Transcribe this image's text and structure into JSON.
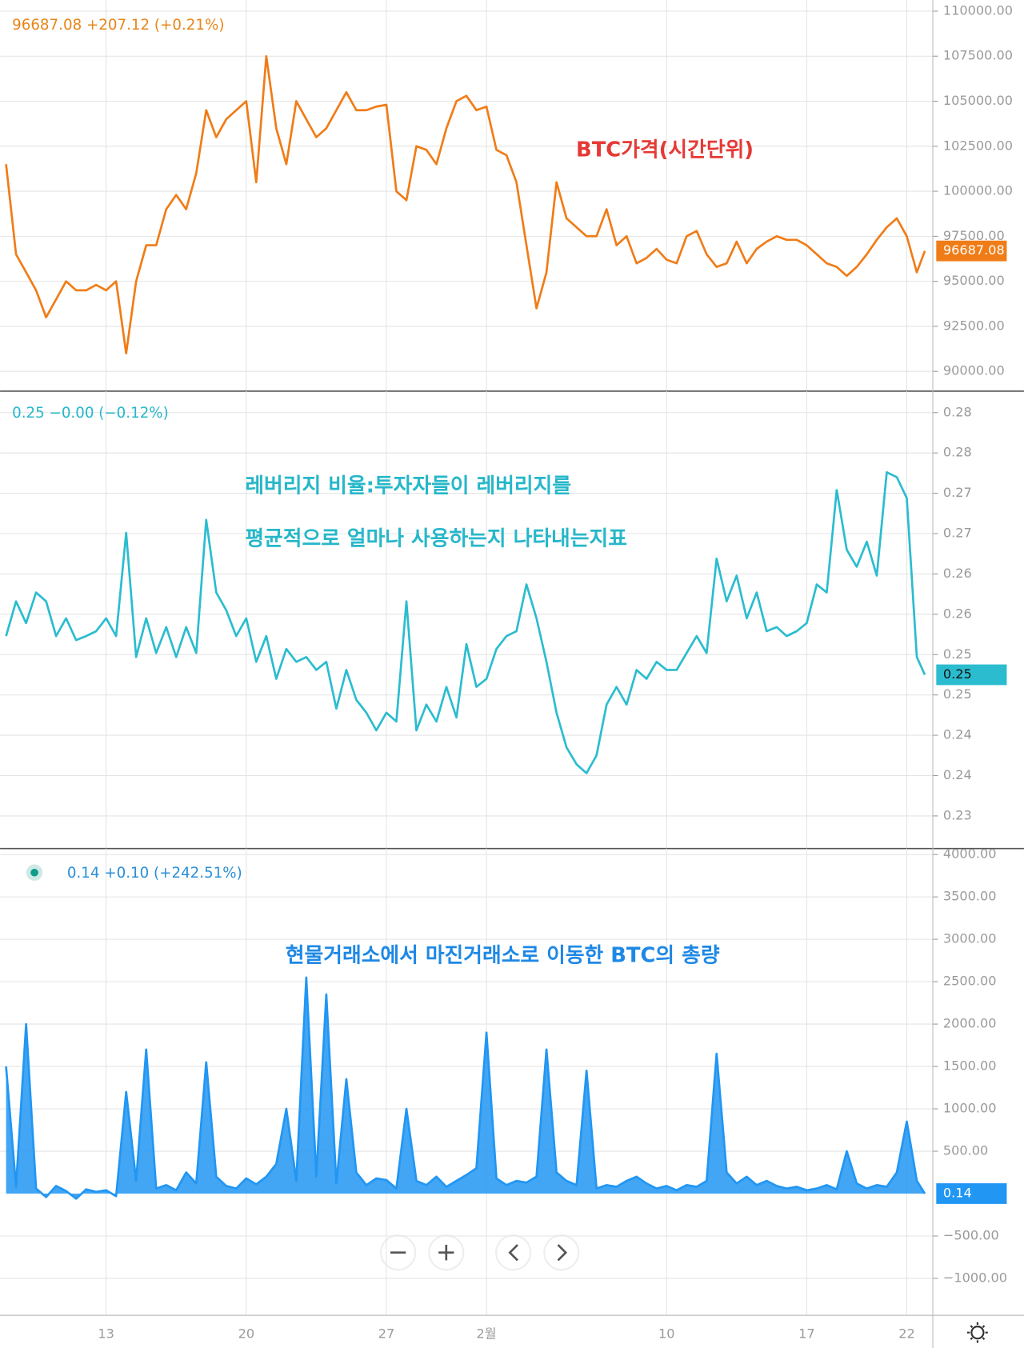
{
  "chart_data": [
    {
      "type": "line",
      "header": "96687.08  +207.12 (+0.21%)",
      "annotation": "BTC가격(시간단위)",
      "last_label": "96687.08",
      "series": [
        {
          "color": "#f07c17",
          "x": [
            8,
            8.5,
            9,
            9.5,
            10,
            10.5,
            11,
            11.5,
            12,
            12.5,
            13,
            13.5,
            14,
            14.5,
            15,
            15.5,
            16,
            16.5,
            17,
            17.5,
            18,
            18.5,
            19,
            19.5,
            20,
            20.5,
            21,
            21.5,
            22,
            22.5,
            23,
            23.5,
            24,
            24.5,
            25,
            25.5,
            26,
            26.5,
            27,
            27.5,
            28,
            28.5,
            29,
            29.5,
            30,
            30.5,
            31,
            31.5,
            32,
            32.5,
            33,
            33.5,
            34,
            34.5,
            35,
            35.5,
            36,
            36.5,
            37,
            37.5,
            38,
            38.5,
            39,
            39.5,
            40,
            40.5,
            41,
            41.5,
            42,
            42.5,
            43,
            43.5,
            44,
            44.5,
            45,
            45.5,
            46,
            46.5,
            47,
            47.5,
            48,
            48.5,
            49,
            49.5,
            50,
            50.5,
            51,
            51.5,
            52,
            52.5,
            53,
            53.5,
            53.9
          ],
          "values": [
            101500,
            96500,
            95500,
            94500,
            93000,
            94000,
            95000,
            94500,
            94500,
            94800,
            94500,
            95000,
            91000,
            95000,
            97000,
            97000,
            99000,
            99800,
            99000,
            101000,
            104500,
            103000,
            104000,
            104500,
            105000,
            100500,
            107500,
            103500,
            101500,
            105000,
            104000,
            103000,
            103500,
            104500,
            105500,
            104500,
            104500,
            104700,
            104800,
            100000,
            99500,
            102500,
            102300,
            101500,
            103500,
            105000,
            105300,
            104500,
            104700,
            102300,
            102000,
            100500,
            97000,
            93500,
            95500,
            100500,
            98500,
            98000,
            97500,
            97500,
            99000,
            97000,
            97500,
            96000,
            96300,
            96800,
            96200,
            96000,
            97500,
            97800,
            96500,
            95800,
            96000,
            97200,
            96000,
            96800,
            97200,
            97500,
            97300,
            97300,
            97000,
            96500,
            96000,
            95800,
            95300,
            95800,
            96500,
            97300,
            98000,
            98500,
            97500,
            95500,
            96687.08
          ]
        }
      ],
      "xlim": [
        7.7,
        54.3
      ],
      "ylim": [
        88900,
        110620
      ],
      "yticks": [
        {
          "value": 90000,
          "label": "90000.00"
        },
        {
          "value": 92500,
          "label": "92500.00"
        },
        {
          "value": 95000,
          "label": "95000.00"
        },
        {
          "value": 97500,
          "label": "97500.00"
        },
        {
          "value": 100000,
          "label": "100000.00"
        },
        {
          "value": 102500,
          "label": "102500.00"
        },
        {
          "value": 105000,
          "label": "105000.00"
        },
        {
          "value": 107500,
          "label": "107500.00"
        },
        {
          "value": 110000,
          "label": "110000.00"
        }
      ],
      "grid": true
    },
    {
      "type": "line",
      "header": "0.25  −0.00 (−0.12%)",
      "annotation": "레버리지 비율:투자자들이 레버리지를",
      "annotation2": "평균적으로 얼마나 사용하는지 나타내는지표",
      "last_label": "0.25",
      "series": [
        {
          "color": "#2bbccf",
          "x": [
            8,
            8.5,
            9,
            9.5,
            10,
            10.5,
            11,
            11.5,
            12,
            12.5,
            13,
            13.5,
            14,
            14.5,
            15,
            15.5,
            16,
            16.5,
            17,
            17.5,
            18,
            18.5,
            19,
            19.5,
            20,
            20.5,
            21,
            21.5,
            22,
            22.5,
            23,
            23.5,
            24,
            24.5,
            25,
            25.5,
            26,
            26.5,
            27,
            27.5,
            28,
            28.5,
            29,
            29.5,
            30,
            30.5,
            31,
            31.5,
            32,
            32.5,
            33,
            33.5,
            34,
            34.5,
            35,
            35.5,
            36,
            36.5,
            37,
            37.5,
            38,
            38.5,
            39,
            39.5,
            40,
            40.5,
            41,
            41.5,
            42,
            42.5,
            43,
            43.5,
            44,
            44.5,
            45,
            45.5,
            46,
            46.5,
            47,
            47.5,
            48,
            48.5,
            49,
            49.5,
            50,
            50.5,
            51,
            51.5,
            52,
            52.5,
            53,
            53.5,
            53.9
          ],
          "values": [
            0.2548,
            0.2591,
            0.2564,
            0.2602,
            0.2591,
            0.2548,
            0.257,
            0.2543,
            0.2548,
            0.2554,
            0.257,
            0.2548,
            0.2676,
            0.2522,
            0.257,
            0.2527,
            0.2559,
            0.2522,
            0.2559,
            0.2527,
            0.2692,
            0.2602,
            0.258,
            0.2548,
            0.257,
            0.2516,
            0.2548,
            0.2495,
            0.2532,
            0.2516,
            0.2522,
            0.2506,
            0.2516,
            0.2458,
            0.2506,
            0.2469,
            0.2453,
            0.2431,
            0.2453,
            0.2442,
            0.2591,
            0.2431,
            0.2463,
            0.2442,
            0.2485,
            0.2447,
            0.2538,
            0.2485,
            0.2495,
            0.2532,
            0.2548,
            0.2554,
            0.2612,
            0.257,
            0.2516,
            0.2453,
            0.241,
            0.2389,
            0.2378,
            0.24,
            0.2463,
            0.2485,
            0.2463,
            0.2506,
            0.2495,
            0.2516,
            0.2506,
            0.2506,
            0.2527,
            0.2548,
            0.2527,
            0.2644,
            0.2591,
            0.2623,
            0.257,
            0.2602,
            0.2554,
            0.2559,
            0.2548,
            0.2554,
            0.2564,
            0.2612,
            0.2602,
            0.2729,
            0.2655,
            0.2634,
            0.2665,
            0.2623,
            0.2751,
            0.2745,
            0.2719,
            0.2522,
            0.25
          ]
        }
      ],
      "xlim": [
        7.7,
        54.3
      ],
      "ylim": [
        0.22846,
        0.28516
      ],
      "yticks": [
        {
          "value": 0.2325,
          "label": "0.23"
        },
        {
          "value": 0.2375,
          "label": "0.24"
        },
        {
          "value": 0.2425,
          "label": "0.24"
        },
        {
          "value": 0.2475,
          "label": "0.25"
        },
        {
          "value": 0.2525,
          "label": "0.25"
        },
        {
          "value": 0.2575,
          "label": "0.26"
        },
        {
          "value": 0.2625,
          "label": "0.26"
        },
        {
          "value": 0.2675,
          "label": "0.27"
        },
        {
          "value": 0.2725,
          "label": "0.27"
        },
        {
          "value": 0.2775,
          "label": "0.28"
        },
        {
          "value": 0.2825,
          "label": "0.28"
        }
      ],
      "grid": true
    },
    {
      "type": "area",
      "header": "0.14  +0.10 (+242.51%)",
      "annotation": "현물거래소에서 마진거래소로 이동한 BTC의 총량",
      "last_label": "0.14",
      "series": [
        {
          "color": "#2196f3",
          "x": [
            8,
            8.5,
            9,
            9.5,
            10,
            10.5,
            11,
            11.5,
            12,
            12.5,
            13,
            13.5,
            14,
            14.5,
            15,
            15.5,
            16,
            16.5,
            17,
            17.5,
            18,
            18.5,
            19,
            19.5,
            20,
            20.5,
            21,
            21.5,
            22,
            22.5,
            23,
            23.5,
            24,
            24.5,
            25,
            25.5,
            26,
            26.5,
            27,
            27.5,
            28,
            28.5,
            29,
            29.5,
            30,
            30.5,
            31,
            31.5,
            32,
            32.5,
            33,
            33.5,
            34,
            34.5,
            35,
            35.5,
            36,
            36.5,
            37,
            37.5,
            38,
            38.5,
            39,
            39.5,
            40,
            40.5,
            41,
            41.5,
            42,
            42.5,
            43,
            43.5,
            44,
            44.5,
            45,
            45.5,
            46,
            46.5,
            47,
            47.5,
            48,
            48.5,
            49,
            49.5,
            50,
            50.5,
            51,
            51.5,
            52,
            52.5,
            53,
            53.5,
            53.9
          ],
          "values": [
            1500,
            80,
            2000,
            60,
            -40,
            90,
            30,
            -60,
            50,
            20,
            40,
            -30,
            1200,
            150,
            1700,
            60,
            100,
            40,
            250,
            120,
            1550,
            200,
            90,
            60,
            180,
            110,
            200,
            350,
            1000,
            150,
            2550,
            200,
            2350,
            120,
            1350,
            250,
            100,
            180,
            160,
            60,
            1000,
            150,
            100,
            200,
            80,
            150,
            220,
            300,
            1900,
            180,
            100,
            150,
            130,
            200,
            1700,
            250,
            150,
            100,
            1450,
            60,
            100,
            80,
            150,
            200,
            120,
            60,
            90,
            40,
            100,
            80,
            150,
            1650,
            250,
            120,
            200,
            100,
            150,
            90,
            60,
            80,
            40,
            60,
            100,
            50,
            500,
            120,
            60,
            100,
            80,
            250,
            850,
            150,
            0.14
          ]
        }
      ],
      "xlim": [
        7.7,
        54.3
      ],
      "ylim": [
        -1436,
        4071
      ],
      "yticks": [
        {
          "value": -1000,
          "label": "−1000.00"
        },
        {
          "value": -500,
          "label": "−500.00"
        },
        {
          "value": 500,
          "label": "500.00"
        },
        {
          "value": 1000,
          "label": "1000.00"
        },
        {
          "value": 1500,
          "label": "1500.00"
        },
        {
          "value": 2000,
          "label": "2000.00"
        },
        {
          "value": 2500,
          "label": "2500.00"
        },
        {
          "value": 3000,
          "label": "3000.00"
        },
        {
          "value": 3500,
          "label": "3500.00"
        },
        {
          "value": 4000,
          "label": "4000.00"
        }
      ],
      "grid": true,
      "xticks": [
        13,
        20,
        27,
        {
          "value": 32,
          "label": "2월"
        },
        {
          "value": 41,
          "label": "10"
        },
        {
          "value": 48,
          "label": "17"
        },
        {
          "value": 53,
          "label": "22"
        }
      ]
    }
  ]
}
